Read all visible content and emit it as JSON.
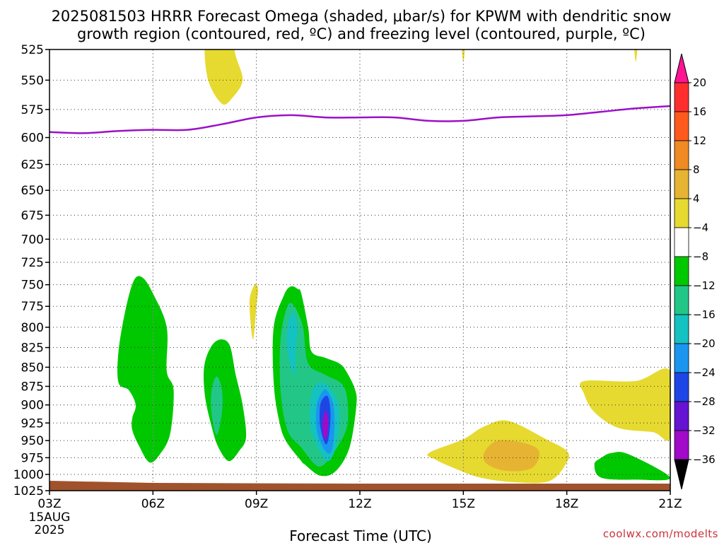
{
  "chart_data": {
    "type": "heatmap",
    "title_line1": "2025081503 HRRR Forecast Omega (shaded, μbar/s) for KPWM with dendritic snow",
    "title_line2": "growth region (contoured, red, ºC) and freezing level (contoured, purple, ºC)",
    "xlabel": "Forecast Time (UTC)",
    "x_ticks": [
      {
        "hour": 3,
        "label": "03Z"
      },
      {
        "hour": 6,
        "label": "06Z"
      },
      {
        "hour": 9,
        "label": "09Z"
      },
      {
        "hour": 12,
        "label": "12Z"
      },
      {
        "hour": 15,
        "label": "15Z"
      },
      {
        "hour": 18,
        "label": "18Z"
      },
      {
        "hour": 21,
        "label": "21Z"
      }
    ],
    "x_date_lines": [
      "15AUG",
      "2025"
    ],
    "xlim": [
      3,
      21
    ],
    "y_ticks": [
      525,
      550,
      575,
      600,
      625,
      650,
      675,
      700,
      725,
      750,
      775,
      800,
      825,
      850,
      875,
      900,
      925,
      950,
      975,
      1000,
      1025
    ],
    "ylim": [
      525,
      1025
    ],
    "y_scale": "log-pressure",
    "colorbar": {
      "labels": [
        "20",
        "16",
        "12",
        "8",
        "4",
        "−4",
        "−8",
        "−12",
        "−16",
        "−20",
        "−24",
        "−28",
        "−32",
        "−36"
      ],
      "colors": [
        "#ff1493",
        "#ff2e2e",
        "#ff5a1e",
        "#f08a22",
        "#e6b432",
        "#e6da30",
        "#ffffff",
        "#00c800",
        "#22c788",
        "#14c2c2",
        "#1a96f0",
        "#1e46e6",
        "#6414d2",
        "#a00ac8",
        "#aaaaaa",
        "#000000"
      ]
    },
    "freezing_level": {
      "color": "#9b10c8",
      "hours": [
        3,
        4,
        5,
        6,
        7,
        8,
        9,
        10,
        11,
        12,
        13,
        14,
        15,
        16,
        17,
        18,
        19,
        20,
        21
      ],
      "pressure": [
        595,
        596,
        594,
        593,
        593,
        588,
        582,
        580,
        582,
        582,
        582,
        585,
        585,
        582,
        581,
        580,
        577,
        574,
        572
      ]
    },
    "omega_regions": [
      {
        "level": "4 to 8",
        "color": "#e6da30",
        "hours": [
          7.8,
          8.2,
          8.4,
          8.6,
          8.3,
          8.0,
          7.6,
          7.5,
          7.7
        ],
        "pressure": [
          505,
          505,
          530,
          550,
          565,
          570,
          550,
          520,
          505
        ]
      },
      {
        "level": "4 to 8",
        "color": "#e6da30",
        "hours": [
          14.95,
          15.05,
          15.0
        ],
        "pressure": [
          520,
          520,
          535
        ]
      },
      {
        "level": "4 to 8",
        "color": "#e6da30",
        "hours": [
          19.95,
          20.05,
          20.0
        ],
        "pressure": [
          520,
          520,
          535
        ]
      },
      {
        "level": "4 to 8",
        "color": "#e6da30",
        "hours": [
          8.95,
          9.05,
          9.0,
          8.9,
          8.8
        ],
        "pressure": [
          750,
          755,
          775,
          815,
          770
        ]
      },
      {
        "level": "4 to 8",
        "color": "#e6da30",
        "hours": [
          14.0,
          15.0,
          15.6,
          16.3,
          17.4,
          18.0,
          18.0,
          17.5,
          16.5,
          15.5,
          14.8,
          14.2
        ],
        "pressure": [
          968,
          948,
          930,
          922,
          948,
          965,
          982,
          1010,
          1012,
          1005,
          992,
          978
        ]
      },
      {
        "level": "8 to 12",
        "color": "#e6b432",
        "hours": [
          15.6,
          16.0,
          16.8,
          17.2,
          17.0,
          16.3,
          15.7
        ],
        "pressure": [
          968,
          950,
          954,
          966,
          990,
          995,
          985
        ]
      },
      {
        "level": "4 to 8",
        "color": "#e6da30",
        "hours": [
          18.5,
          20.0,
          21.0,
          21.0,
          20.5,
          19.5,
          18.8,
          18.5
        ],
        "pressure": [
          868,
          868,
          855,
          945,
          938,
          932,
          910,
          885
        ]
      },
      {
        "level": "-4 to -8",
        "color": "#00c800",
        "hours": [
          19.8,
          19.3,
          19.0,
          18.8,
          19.0,
          20.0,
          21.0
        ],
        "pressure": [
          970,
          968,
          975,
          985,
          1005,
          1008,
          1005
        ]
      },
      {
        "level": "-4 to -8",
        "color": "#00c800",
        "hours": [
          5.45,
          5.2,
          5.0,
          5.0,
          5.3,
          5.5,
          5.4,
          5.4,
          5.6,
          5.9,
          6.2,
          6.5,
          6.6,
          6.4,
          6.4,
          6.0,
          5.7
        ],
        "pressure": [
          745,
          780,
          830,
          870,
          880,
          900,
          918,
          935,
          958,
          982,
          970,
          940,
          880,
          855,
          800,
          760,
          742
        ]
      },
      {
        "level": "-4 to -8",
        "color": "#00c800",
        "hours": [
          7.8,
          7.5,
          7.5,
          7.7,
          7.9,
          8.2,
          8.5,
          8.7,
          8.6,
          8.4,
          8.2
        ],
        "pressure": [
          818,
          845,
          885,
          930,
          960,
          980,
          965,
          945,
          900,
          860,
          820
        ]
      },
      {
        "level": "-8 to -12",
        "color": "#22c788",
        "hours": [
          7.85,
          7.7,
          7.7,
          7.85,
          8.0,
          8.0
        ],
        "pressure": [
          862,
          880,
          912,
          942,
          910,
          880
        ]
      },
      {
        "level": "-4 to -8",
        "color": "#00c800",
        "hours": [
          9.8,
          9.5,
          9.5,
          9.65,
          9.85,
          10.3,
          10.4,
          10.85,
          11.3,
          11.7,
          11.9,
          11.85,
          11.6,
          11.4,
          11.0,
          10.6,
          10.5,
          10.3,
          10.2,
          10.0
        ],
        "pressure": [
          762,
          800,
          870,
          920,
          950,
          980,
          985,
          1002,
          995,
          960,
          900,
          878,
          855,
          845,
          838,
          830,
          800,
          760,
          755,
          752
        ]
      },
      {
        "level": "-8 to -12",
        "color": "#22c788",
        "hours": [
          9.9,
          9.7,
          9.7,
          9.9,
          10.3,
          10.8,
          11.2,
          11.6,
          11.65,
          11.5,
          11.0,
          10.5,
          10.35,
          10.1
        ],
        "pressure": [
          775,
          815,
          880,
          935,
          960,
          988,
          970,
          935,
          900,
          873,
          860,
          845,
          800,
          775
        ]
      },
      {
        "level": "-12 to -16",
        "color": "#14c2c2",
        "hours": [
          10.05,
          9.9,
          9.9,
          10.1,
          10.15,
          10.2
        ],
        "pressure": [
          782,
          800,
          830,
          860,
          825,
          800
        ]
      },
      {
        "level": "-12 to -16",
        "color": "#14c2c2",
        "hours": [
          10.8,
          10.6,
          10.55,
          10.8,
          11.1,
          11.35,
          11.4,
          11.2,
          11.0
        ],
        "pressure": [
          870,
          885,
          925,
          962,
          980,
          950,
          905,
          882,
          872
        ]
      },
      {
        "level": "-16 to -20",
        "color": "#1a96f0",
        "hours": [
          10.95,
          10.75,
          10.75,
          10.95,
          11.15,
          11.25,
          11.25,
          11.1
        ],
        "pressure": [
          880,
          900,
          935,
          962,
          968,
          945,
          905,
          884
        ]
      },
      {
        "level": "-20 to -24",
        "color": "#1e46e6",
        "hours": [
          11.0,
          10.85,
          10.85,
          11.0,
          11.1,
          11.15,
          11.1
        ],
        "pressure": [
          888,
          900,
          930,
          955,
          945,
          915,
          892
        ]
      },
      {
        "level": "-28 to -32",
        "color": "#a00ac8",
        "hours": [
          11.0,
          10.92,
          10.95,
          11.05,
          11.08
        ],
        "pressure": [
          908,
          925,
          945,
          945,
          920
        ]
      }
    ],
    "terrain": {
      "color": "#a0522d",
      "pressure_top": 1013
    }
  },
  "credit": "coolwx.com/modelts"
}
